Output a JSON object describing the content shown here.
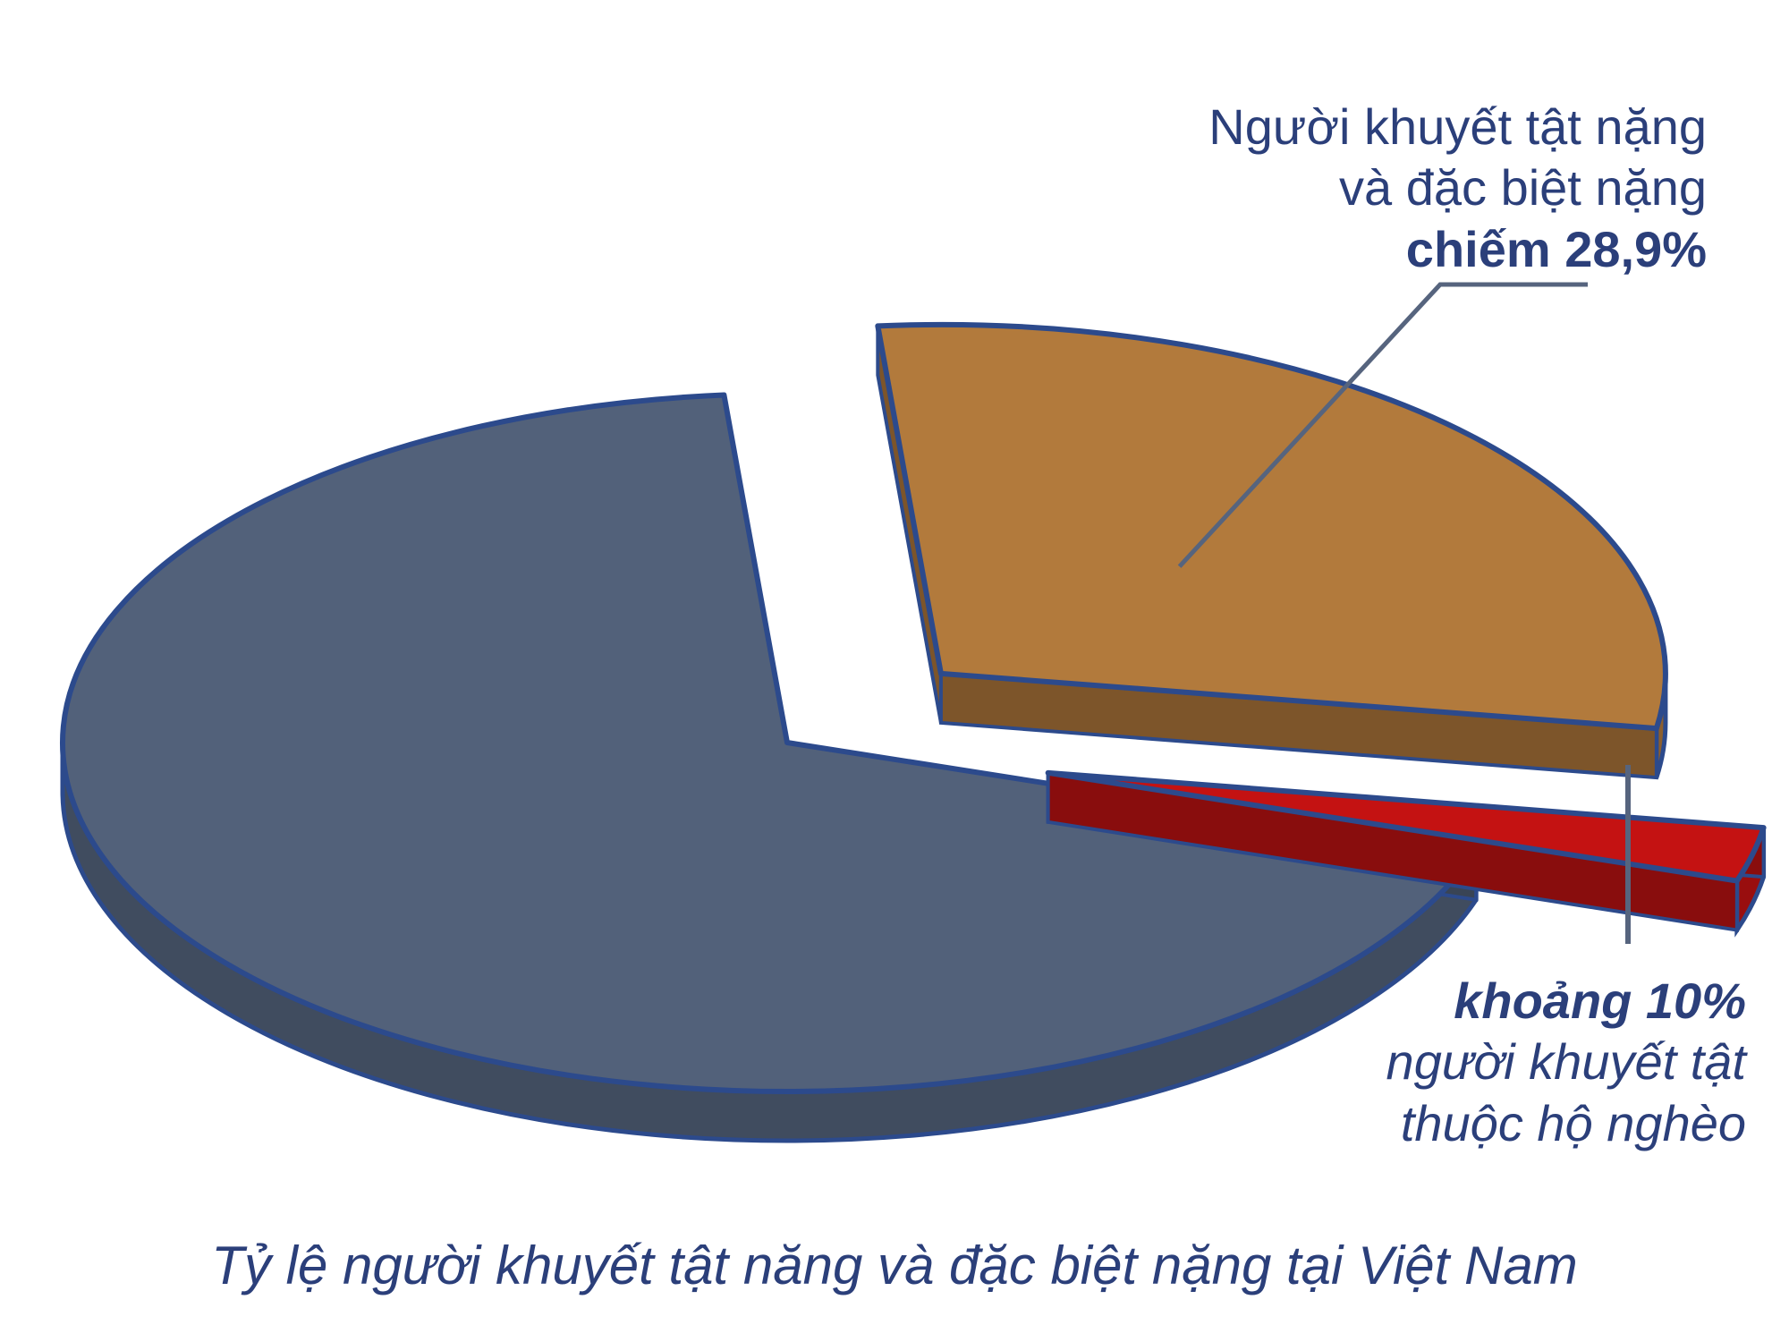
{
  "chart_data": {
    "type": "pie",
    "title": "Tỷ lệ người khuyết tật năng và đặc biệt nặng tại Việt Nam",
    "slices": [
      {
        "label_lines": [
          "Người khuyết tật nặng",
          "và đặc biệt nặng"
        ],
        "value_text": "chiếm 28,9%",
        "value": 28.9,
        "color": "#b27a3c"
      },
      {
        "value_text": "khoảng 10%",
        "label_lines": [
          "người khuyết tật",
          "thuộc hộ nghèo"
        ],
        "value": 2.5,
        "color": "#c41212"
      },
      {
        "value": 68.6,
        "color": "#52617a"
      }
    ],
    "outline_color": "#2c4a8c",
    "text_color": "#2b3f7a"
  }
}
